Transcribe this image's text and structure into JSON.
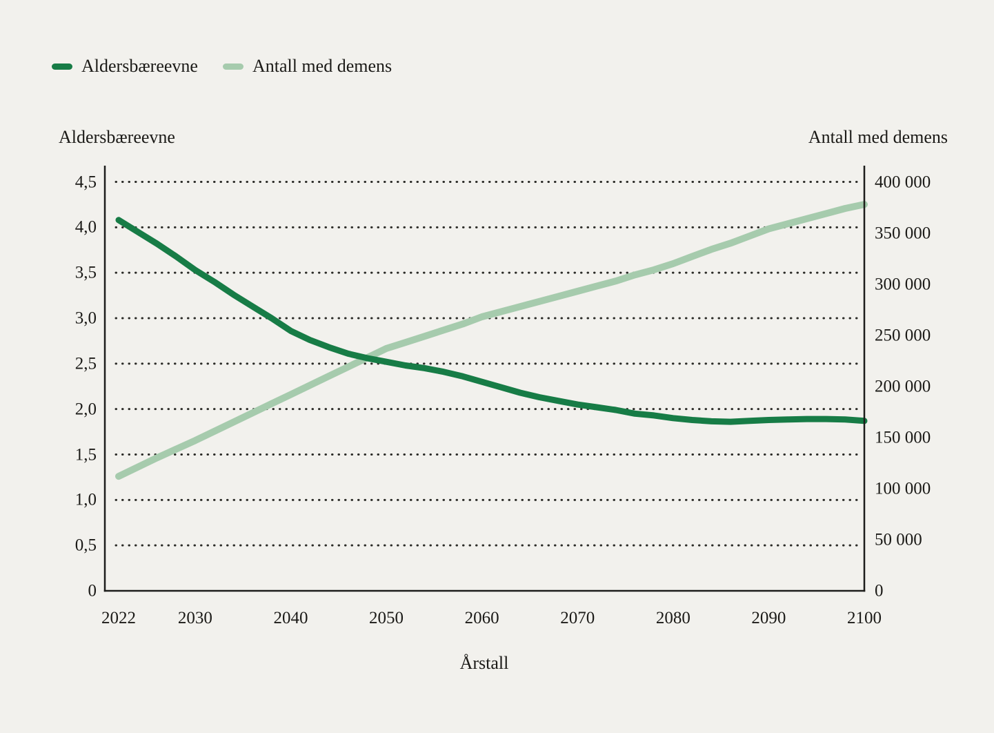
{
  "colors": {
    "background": "#f2f1ed",
    "text": "#1b1a17",
    "axis": "#1d1d1b",
    "grid": "#2a2a26",
    "series_dark_green": "#177c46",
    "series_light_green": "#a6cbad"
  },
  "legend": {
    "items": [
      {
        "label": "Aldersbæreevne",
        "color": "#177c46"
      },
      {
        "label": "Antall med demens",
        "color": "#a6cbad"
      }
    ]
  },
  "chart_data": {
    "type": "line",
    "title": "",
    "x_axis": {
      "title": "Årstall",
      "range": [
        2022,
        2100
      ],
      "tick_labels": [
        "2022",
        "2030",
        "2040",
        "2050",
        "2060",
        "2070",
        "2080",
        "2090",
        "2100"
      ],
      "tick_values": [
        2022,
        2030,
        2040,
        2050,
        2060,
        2070,
        2080,
        2090,
        2100
      ]
    },
    "left_axis": {
      "title": "Aldersbæreevne",
      "range": [
        0,
        4.5
      ],
      "tick_step": 0.5,
      "tick_labels": [
        "0",
        "0,5",
        "1,0",
        "1,5",
        "2,0",
        "2,5",
        "3,0",
        "3,5",
        "4,0",
        "4,5"
      ],
      "tick_values": [
        0,
        0.5,
        1.0,
        1.5,
        2.0,
        2.5,
        3.0,
        3.5,
        4.0,
        4.5
      ]
    },
    "right_axis": {
      "title": "Antall med demens",
      "range": [
        0,
        400000
      ],
      "tick_step": 50000,
      "tick_labels": [
        "0",
        "50 000",
        "100 000",
        "150 000",
        "200 000",
        "250 000",
        "300 000",
        "350 000",
        "400 000"
      ],
      "tick_values": [
        0,
        50000,
        100000,
        150000,
        200000,
        250000,
        300000,
        350000,
        400000
      ]
    },
    "grid": {
      "horizontal": true,
      "style": "dotted",
      "at": "left_axis_ticks"
    },
    "legend_position": "top-left",
    "series": [
      {
        "name": "Aldersbæreevne",
        "axis": "left",
        "color": "#177c46",
        "stroke_width": 9,
        "points": [
          [
            2022,
            4.08
          ],
          [
            2024,
            3.95
          ],
          [
            2026,
            3.82
          ],
          [
            2028,
            3.68
          ],
          [
            2030,
            3.53
          ],
          [
            2032,
            3.4
          ],
          [
            2034,
            3.26
          ],
          [
            2036,
            3.13
          ],
          [
            2038,
            3.0
          ],
          [
            2040,
            2.86
          ],
          [
            2042,
            2.76
          ],
          [
            2044,
            2.68
          ],
          [
            2046,
            2.61
          ],
          [
            2048,
            2.56
          ],
          [
            2050,
            2.52
          ],
          [
            2052,
            2.48
          ],
          [
            2054,
            2.45
          ],
          [
            2056,
            2.41
          ],
          [
            2058,
            2.36
          ],
          [
            2060,
            2.3
          ],
          [
            2062,
            2.24
          ],
          [
            2064,
            2.18
          ],
          [
            2066,
            2.13
          ],
          [
            2068,
            2.09
          ],
          [
            2070,
            2.05
          ],
          [
            2072,
            2.02
          ],
          [
            2074,
            1.99
          ],
          [
            2076,
            1.95
          ],
          [
            2078,
            1.93
          ],
          [
            2080,
            1.9
          ],
          [
            2082,
            1.88
          ],
          [
            2084,
            1.865
          ],
          [
            2086,
            1.86
          ],
          [
            2088,
            1.87
          ],
          [
            2090,
            1.88
          ],
          [
            2092,
            1.885
          ],
          [
            2094,
            1.89
          ],
          [
            2096,
            1.89
          ],
          [
            2098,
            1.885
          ],
          [
            2100,
            1.87
          ]
        ]
      },
      {
        "name": "Antall med demens",
        "axis": "right",
        "color": "#a6cbad",
        "stroke_width": 10,
        "points": [
          [
            2022,
            112000
          ],
          [
            2026,
            130000
          ],
          [
            2030,
            147000
          ],
          [
            2034,
            165000
          ],
          [
            2038,
            183000
          ],
          [
            2040,
            192000
          ],
          [
            2042,
            201000
          ],
          [
            2044,
            210000
          ],
          [
            2046,
            219000
          ],
          [
            2048,
            228000
          ],
          [
            2050,
            237000
          ],
          [
            2052,
            243000
          ],
          [
            2054,
            249000
          ],
          [
            2056,
            255000
          ],
          [
            2058,
            261000
          ],
          [
            2060,
            268000
          ],
          [
            2062,
            273000
          ],
          [
            2064,
            278000
          ],
          [
            2066,
            283000
          ],
          [
            2068,
            288000
          ],
          [
            2070,
            293000
          ],
          [
            2072,
            298000
          ],
          [
            2074,
            303000
          ],
          [
            2076,
            309000
          ],
          [
            2078,
            314000
          ],
          [
            2080,
            320000
          ],
          [
            2082,
            327000
          ],
          [
            2084,
            334000
          ],
          [
            2086,
            340000
          ],
          [
            2088,
            347000
          ],
          [
            2090,
            354000
          ],
          [
            2092,
            359000
          ],
          [
            2094,
            364000
          ],
          [
            2096,
            369000
          ],
          [
            2098,
            374000
          ],
          [
            2100,
            378000
          ]
        ]
      }
    ]
  }
}
